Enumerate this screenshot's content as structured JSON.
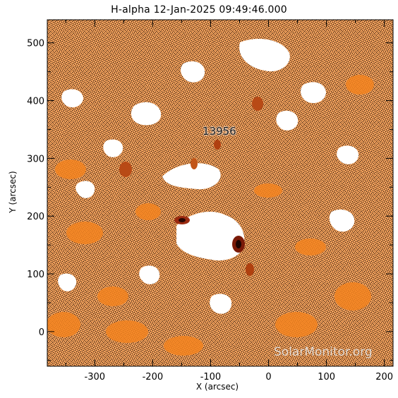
{
  "title": "H-alpha 12-Jan-2025 09:49:46.000",
  "axes": {
    "xlabel": "X (arcsec)",
    "ylabel": "Y (arcsec)",
    "xticks": [
      "-300",
      "-200",
      "-100",
      "0",
      "100",
      "200"
    ],
    "yticks": [
      "0",
      "100",
      "200",
      "300",
      "400",
      "500"
    ]
  },
  "annotation": "13956",
  "watermark": "SolarMonitor.org",
  "colors": {
    "background": "#ffffff",
    "bright": "#ffffff",
    "mid": "#f58a2a",
    "dark": "#1a0a02",
    "accent": "#b03010"
  }
}
